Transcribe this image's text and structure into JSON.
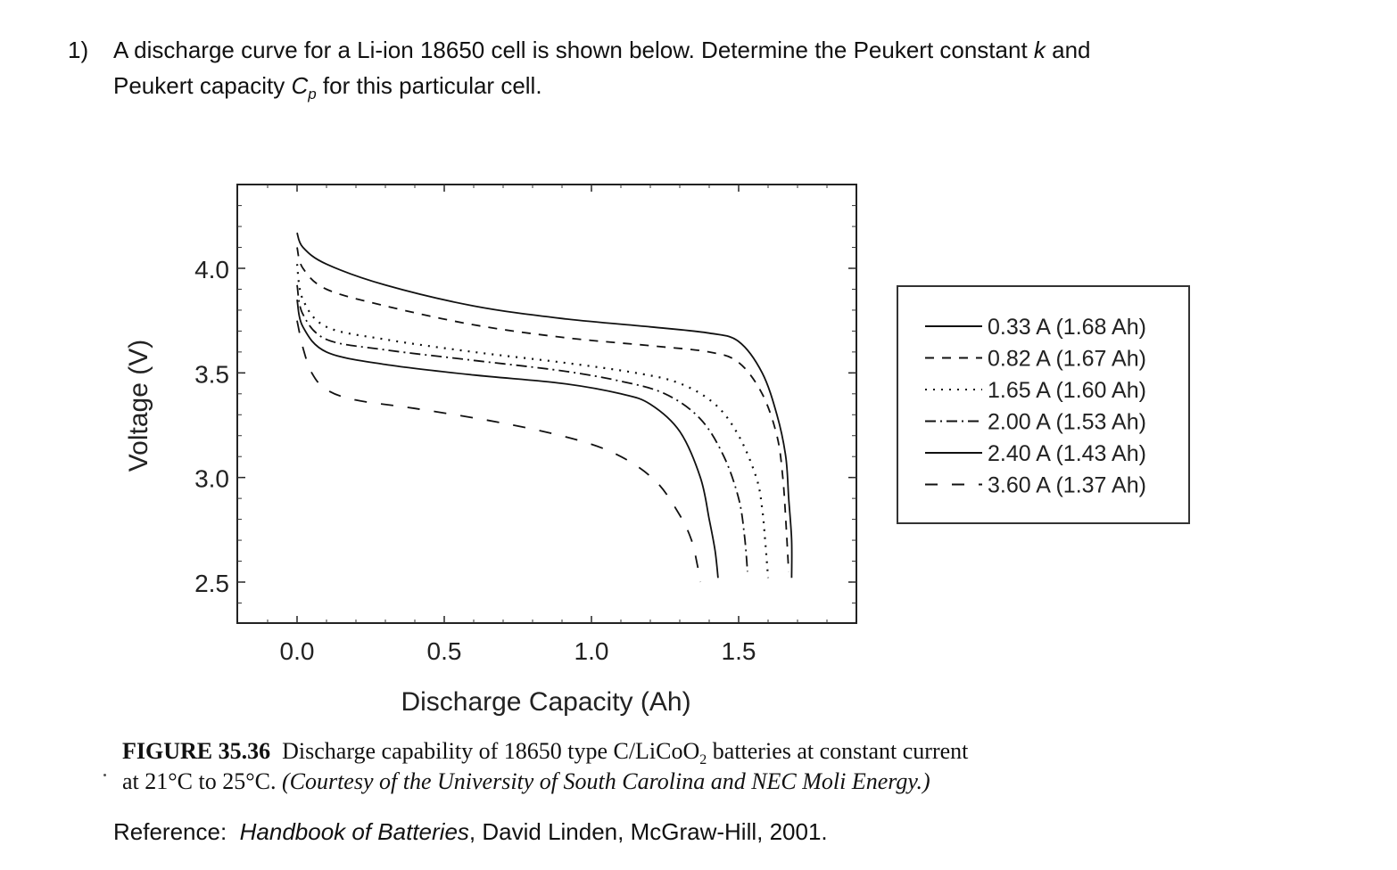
{
  "question": {
    "number": "1)",
    "line1_a": "A discharge curve for a Li-ion 18650 cell is shown below.  Determine the Peukert constant ",
    "k_symbol": "k",
    "line1_b": " and",
    "line2_a": "Peukert capacity ",
    "cp_symbol": "C",
    "cp_sub": "p",
    "line2_b": " for this particular cell."
  },
  "chart_data": {
    "type": "line",
    "xlabel": "Discharge Capacity (Ah)",
    "ylabel": "Voltage (V)",
    "xlim": [
      -0.2,
      1.9
    ],
    "ylim": [
      2.3,
      4.4
    ],
    "xticks": [
      "0.0",
      "0.5",
      "1.0",
      "1.5"
    ],
    "xtick_values": [
      0.0,
      0.5,
      1.0,
      1.5
    ],
    "yticks": [
      "2.5",
      "3.0",
      "3.5",
      "4.0"
    ],
    "ytick_values": [
      2.5,
      3.0,
      3.5,
      4.0
    ],
    "legend_position": "outside-right",
    "series": [
      {
        "name": "0.33 A (1.68 Ah)",
        "style": "solid",
        "x": [
          0.0,
          0.02,
          0.1,
          0.3,
          0.6,
          0.9,
          1.2,
          1.4,
          1.5,
          1.58,
          1.63,
          1.66,
          1.67,
          1.68,
          1.68
        ],
        "y": [
          4.17,
          4.1,
          4.02,
          3.92,
          3.82,
          3.76,
          3.72,
          3.69,
          3.65,
          3.5,
          3.3,
          3.1,
          2.9,
          2.7,
          2.52
        ]
      },
      {
        "name": "0.82 A (1.67 Ah)",
        "style": "dashed",
        "x": [
          0.0,
          0.02,
          0.1,
          0.3,
          0.6,
          0.9,
          1.2,
          1.4,
          1.5,
          1.58,
          1.63,
          1.65,
          1.66,
          1.67
        ],
        "y": [
          4.1,
          4.0,
          3.9,
          3.82,
          3.73,
          3.67,
          3.63,
          3.6,
          3.55,
          3.4,
          3.2,
          3.0,
          2.8,
          2.55
        ]
      },
      {
        "name": "1.65 A (1.60 Ah)",
        "style": "dotted",
        "x": [
          0.0,
          0.02,
          0.1,
          0.3,
          0.6,
          0.9,
          1.15,
          1.3,
          1.42,
          1.5,
          1.56,
          1.58,
          1.59,
          1.6
        ],
        "y": [
          4.02,
          3.85,
          3.72,
          3.66,
          3.6,
          3.55,
          3.5,
          3.45,
          3.35,
          3.2,
          3.0,
          2.85,
          2.7,
          2.52
        ]
      },
      {
        "name": "2.00 A (1.53 Ah)",
        "style": "dashdot",
        "x": [
          0.0,
          0.02,
          0.1,
          0.3,
          0.6,
          0.9,
          1.1,
          1.25,
          1.37,
          1.45,
          1.5,
          1.52,
          1.53
        ],
        "y": [
          3.92,
          3.78,
          3.66,
          3.61,
          3.56,
          3.51,
          3.46,
          3.4,
          3.28,
          3.1,
          2.9,
          2.72,
          2.55
        ]
      },
      {
        "name": "2.40 A (1.43 Ah)",
        "style": "solid",
        "x": [
          0.0,
          0.02,
          0.1,
          0.3,
          0.6,
          0.9,
          1.1,
          1.2,
          1.3,
          1.37,
          1.4,
          1.42,
          1.43
        ],
        "y": [
          3.85,
          3.72,
          3.6,
          3.54,
          3.49,
          3.45,
          3.4,
          3.35,
          3.22,
          3.0,
          2.8,
          2.65,
          2.52
        ]
      },
      {
        "name": "3.60 A (1.37 Ah)",
        "style": "longdash",
        "x": [
          0.0,
          0.02,
          0.05,
          0.1,
          0.2,
          0.4,
          0.7,
          0.95,
          1.1,
          1.22,
          1.3,
          1.34,
          1.36,
          1.37
        ],
        "y": [
          3.75,
          3.62,
          3.5,
          3.42,
          3.37,
          3.33,
          3.26,
          3.18,
          3.1,
          2.98,
          2.82,
          2.7,
          2.58,
          2.5
        ]
      }
    ]
  },
  "caption": {
    "label": "FIGURE 35.36",
    "text_a": "  Discharge capability of 18650 type C/LiCoO",
    "sub": "2",
    "text_b": " batteries at constant current",
    "line2_a": "at 21°C to 25°C. ",
    "line2_b": "(Courtesy of the University of South Carolina and NEC Moli Energy.)"
  },
  "reference": {
    "prefix": "Reference:  ",
    "book": "Handbook of Batteries",
    "suffix": ", David Linden, McGraw-Hill, 2001."
  }
}
